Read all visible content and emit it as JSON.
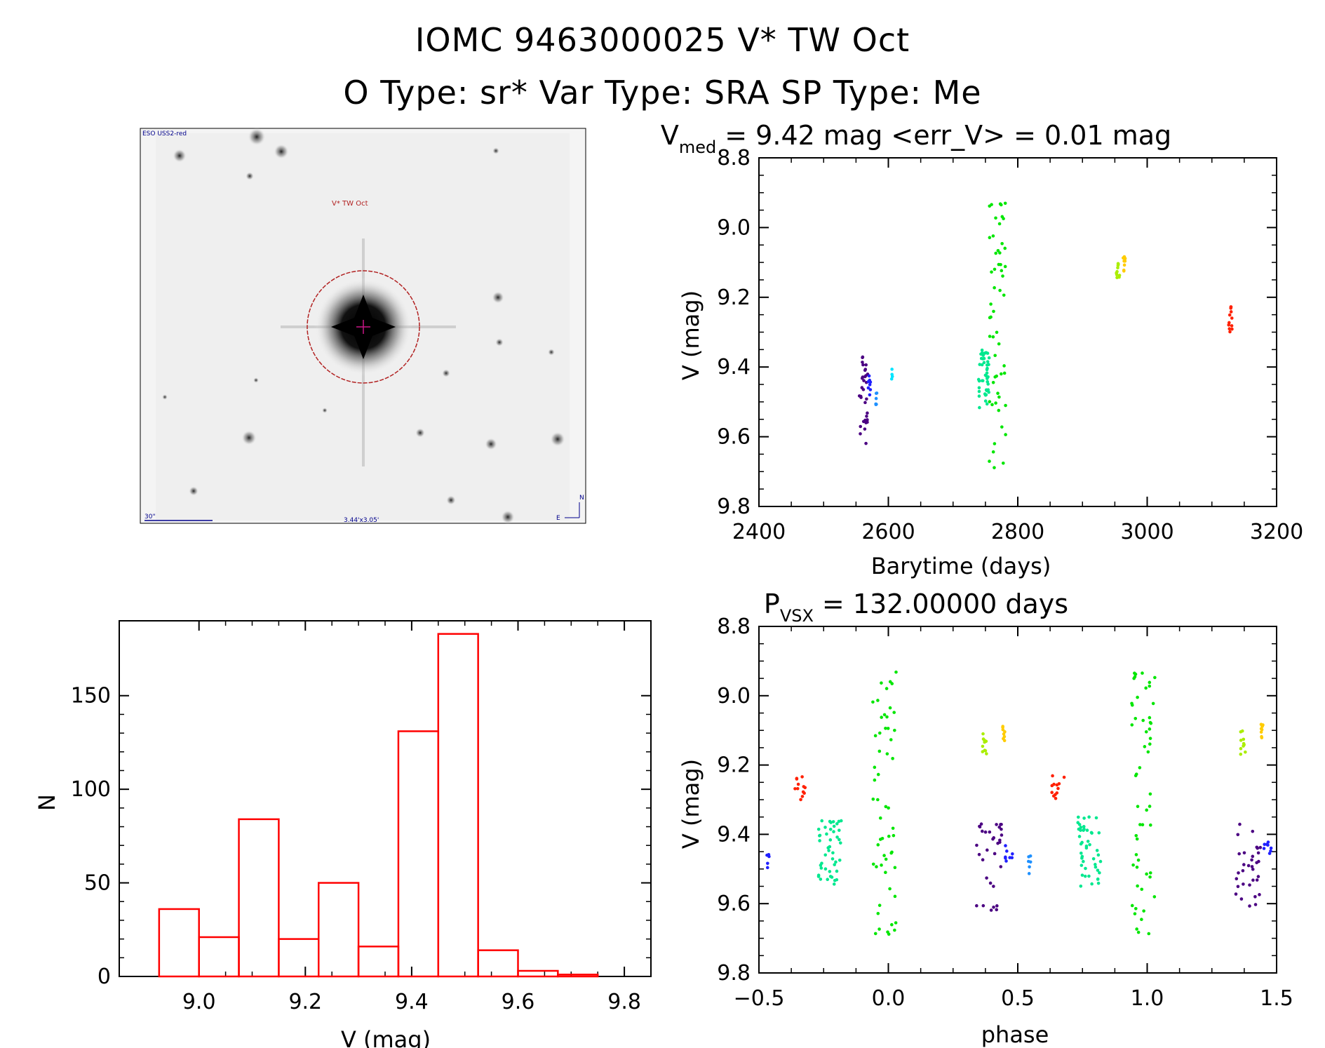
{
  "header": {
    "title_line1": "IOMC 9463000025   V* TW Oct",
    "title_line2": "O Type: sr*  Var Type: SRA  SP Type: Me"
  },
  "finder": {
    "survey_label": "ESO USS2-red",
    "star_label": "V* TW Oct",
    "scale_label": "30\"",
    "fov_label": "3.44'x3.05'",
    "north_label": "N",
    "east_label": "E"
  },
  "colors": {
    "histogram": "#ff0000",
    "finder_annotation": "#b22222",
    "finder_text": "#00008b",
    "palette": [
      "#4b0082",
      "#2020ff",
      "#1e90ff",
      "#00e5ff",
      "#00e88f",
      "#00e600",
      "#aaee00",
      "#ffcc00",
      "#ff2000"
    ]
  },
  "chart_data": [
    {
      "id": "lightcurve",
      "type": "scatter",
      "title_main": "V",
      "title_sub": "med",
      "title_rest": "= 9.42 mag <err_V> = 0.01 mag",
      "xlabel": "Barytime (days)",
      "ylabel": "V (mag)",
      "xlim": [
        2400,
        3200
      ],
      "ylim": [
        9.8,
        8.8
      ],
      "xticks": [
        2400,
        2600,
        2800,
        3000,
        3200
      ],
      "xtick_labels": [
        "2400",
        "2600",
        "2800",
        "3000",
        "3200"
      ],
      "yticks": [
        8.8,
        9.0,
        9.2,
        9.4,
        9.6,
        9.8
      ],
      "ytick_labels": [
        "8.8",
        "9.0",
        "9.2",
        "9.4",
        "9.6",
        "9.8"
      ],
      "groups": [
        {
          "color": "#4b0082",
          "x_range": [
            2555,
            2568
          ],
          "y_range": [
            9.37,
            9.62
          ],
          "n": 32,
          "seed": 1
        },
        {
          "color": "#2020ff",
          "x_range": [
            2568,
            2574
          ],
          "y_range": [
            9.42,
            9.48
          ],
          "n": 8,
          "seed": 2
        },
        {
          "color": "#1e90ff",
          "x_range": [
            2580,
            2583
          ],
          "y_range": [
            9.46,
            9.51
          ],
          "n": 6,
          "seed": 3
        },
        {
          "color": "#00e5ff",
          "x_range": [
            2605,
            2607
          ],
          "y_range": [
            9.4,
            9.45
          ],
          "n": 4,
          "seed": 4
        },
        {
          "color": "#00e88f",
          "x_range": [
            2738,
            2756
          ],
          "y_range": [
            9.35,
            9.52
          ],
          "n": 45,
          "seed": 5
        },
        {
          "color": "#00e600",
          "x_range": [
            2756,
            2782
          ],
          "y_range": [
            8.93,
            9.69
          ],
          "n": 55,
          "seed": 6
        },
        {
          "color": "#aaee00",
          "x_range": [
            2952,
            2958
          ],
          "y_range": [
            9.1,
            9.17
          ],
          "n": 10,
          "seed": 7
        },
        {
          "color": "#ffcc00",
          "x_range": [
            2962,
            2967
          ],
          "y_range": [
            9.08,
            9.13
          ],
          "n": 8,
          "seed": 8
        },
        {
          "color": "#ff2000",
          "x_range": [
            3125,
            3132
          ],
          "y_range": [
            9.22,
            9.3
          ],
          "n": 12,
          "seed": 9
        }
      ]
    },
    {
      "id": "histogram",
      "type": "bar",
      "xlabel": "V (mag)",
      "ylabel": "N",
      "xlim": [
        8.85,
        9.85
      ],
      "ylim": [
        0,
        190
      ],
      "xticks": [
        9.0,
        9.2,
        9.4,
        9.6,
        9.8
      ],
      "xtick_labels": [
        "9.0",
        "9.2",
        "9.4",
        "9.6",
        "9.8"
      ],
      "yticks": [
        0,
        50,
        100,
        150
      ],
      "ytick_labels": [
        "0",
        "50",
        "100",
        "150"
      ],
      "bin_edges": [
        8.925,
        9.0,
        9.075,
        9.15,
        9.225,
        9.3,
        9.375,
        9.45,
        9.525,
        9.6,
        9.675,
        9.75
      ],
      "counts": [
        36,
        21,
        84,
        20,
        50,
        16,
        131,
        183,
        14,
        3,
        1
      ]
    },
    {
      "id": "phased",
      "type": "scatter",
      "title_main": "P",
      "title_sub": "VSX",
      "title_rest": "= 132.00000 days",
      "xlabel": "phase",
      "ylabel": "V (mag)",
      "xlim": [
        -0.5,
        1.5
      ],
      "ylim": [
        9.8,
        8.8
      ],
      "xticks": [
        -0.5,
        0.0,
        0.5,
        1.0,
        1.5
      ],
      "xtick_labels": [
        "−0.5",
        "0.0",
        "0.5",
        "1.0",
        "1.5"
      ],
      "yticks": [
        8.8,
        9.0,
        9.2,
        9.4,
        9.6,
        9.8
      ],
      "ytick_labels": [
        "8.8",
        "9.0",
        "9.2",
        "9.4",
        "9.6",
        "9.8"
      ],
      "groups": [
        {
          "color": "#2020ff",
          "x_range": [
            -0.47,
            -0.46
          ],
          "y_range": [
            9.45,
            9.51
          ],
          "n": 5,
          "seed": 11
        },
        {
          "color": "#ff2000",
          "x_range": [
            -0.37,
            -0.32
          ],
          "y_range": [
            9.23,
            9.3
          ],
          "n": 12,
          "seed": 12
        },
        {
          "color": "#00e88f",
          "x_range": [
            -0.27,
            -0.18
          ],
          "y_range": [
            9.35,
            9.55
          ],
          "n": 45,
          "seed": 13
        },
        {
          "color": "#00e600",
          "x_range": [
            -0.06,
            0.03
          ],
          "y_range": [
            8.93,
            9.69
          ],
          "n": 55,
          "seed": 14
        },
        {
          "color": "#4b0082",
          "x_range": [
            0.34,
            0.44
          ],
          "y_range": [
            9.37,
            9.62
          ],
          "n": 32,
          "seed": 15
        },
        {
          "color": "#2020ff",
          "x_range": [
            0.45,
            0.48
          ],
          "y_range": [
            9.42,
            9.48
          ],
          "n": 8,
          "seed": 16
        },
        {
          "color": "#1e90ff",
          "x_range": [
            0.54,
            0.55
          ],
          "y_range": [
            9.46,
            9.52
          ],
          "n": 6,
          "seed": 17
        },
        {
          "color": "#aaee00",
          "x_range": [
            0.36,
            0.38
          ],
          "y_range": [
            9.1,
            9.17
          ],
          "n": 10,
          "seed": 18
        },
        {
          "color": "#ffcc00",
          "x_range": [
            0.44,
            0.45
          ],
          "y_range": [
            9.08,
            9.13
          ],
          "n": 8,
          "seed": 19
        },
        {
          "color": "#ff2000",
          "x_range": [
            0.63,
            0.68
          ],
          "y_range": [
            9.23,
            9.3
          ],
          "n": 12,
          "seed": 20
        },
        {
          "color": "#00e88f",
          "x_range": [
            0.73,
            0.82
          ],
          "y_range": [
            9.35,
            9.55
          ],
          "n": 45,
          "seed": 21
        },
        {
          "color": "#00e600",
          "x_range": [
            0.94,
            1.03
          ],
          "y_range": [
            8.93,
            9.69
          ],
          "n": 55,
          "seed": 22
        },
        {
          "color": "#4b0082",
          "x_range": [
            1.34,
            1.44
          ],
          "y_range": [
            9.37,
            9.62
          ],
          "n": 32,
          "seed": 23
        },
        {
          "color": "#2020ff",
          "x_range": [
            1.45,
            1.48
          ],
          "y_range": [
            9.42,
            9.48
          ],
          "n": 8,
          "seed": 24
        },
        {
          "color": "#aaee00",
          "x_range": [
            1.36,
            1.38
          ],
          "y_range": [
            9.1,
            9.17
          ],
          "n": 10,
          "seed": 25
        },
        {
          "color": "#ffcc00",
          "x_range": [
            1.44,
            1.45
          ],
          "y_range": [
            9.08,
            9.13
          ],
          "n": 8,
          "seed": 26
        }
      ]
    }
  ]
}
